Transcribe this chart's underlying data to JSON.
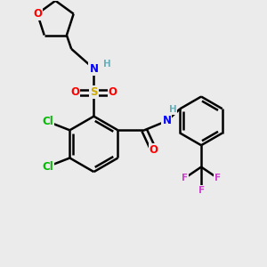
{
  "bg_color": "#ebebeb",
  "bond_color": "#000000",
  "bond_width": 1.8,
  "atom_colors": {
    "C": "#000000",
    "H": "#6ab0bc",
    "N": "#0000ff",
    "O": "#ff0000",
    "S": "#ccaa00",
    "Cl": "#00bb00",
    "F": "#cc44cc"
  },
  "font_size": 8.5,
  "fig_size": [
    3.0,
    3.0
  ],
  "dpi": 100,
  "xlim": [
    0,
    10
  ],
  "ylim": [
    0,
    10
  ]
}
